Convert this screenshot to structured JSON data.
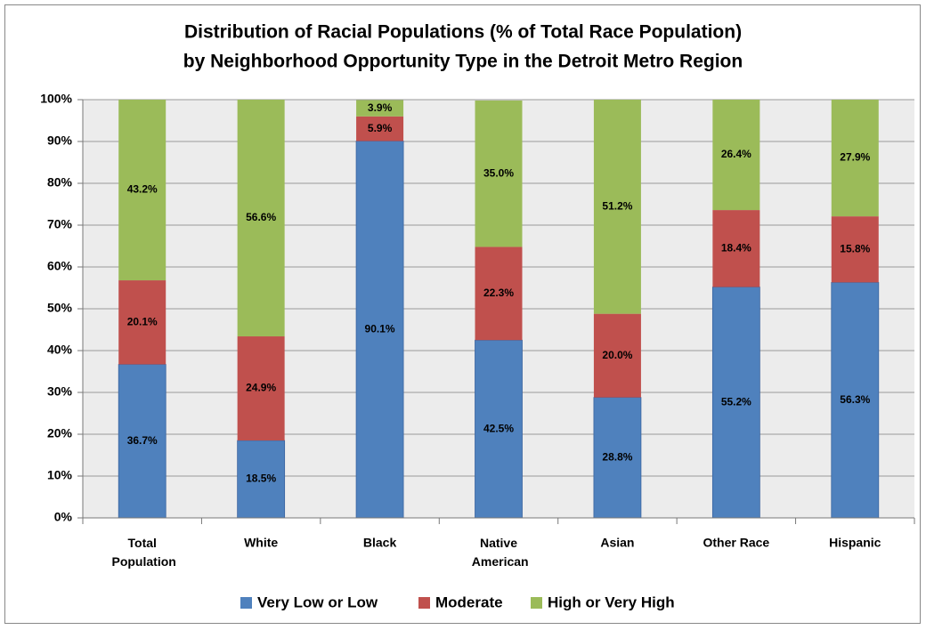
{
  "chart_data": {
    "type": "stacked_bar",
    "title": [
      "Distribution of Racial Populations (% of Total Race Population)",
      "by Neighborhood Opportunity Type in the Detroit Metro Region"
    ],
    "categories": [
      "Total Population",
      "White",
      "Black",
      "Native American",
      "Asian",
      "Other Race",
      "Hispanic"
    ],
    "series": [
      {
        "name": "Very Low or Low",
        "color": "#4f81bd",
        "values": [
          36.7,
          18.5,
          90.1,
          42.5,
          28.8,
          55.2,
          56.3
        ],
        "value_labels": [
          "36.7%",
          "18.5%",
          "90.1%",
          "42.5%",
          "28.8%",
          "55.2%",
          "56.3%"
        ]
      },
      {
        "name": "Moderate",
        "color": "#c0504d",
        "values": [
          20.1,
          24.9,
          5.9,
          22.3,
          20.0,
          18.4,
          15.8
        ],
        "value_labels": [
          "20.1%",
          "24.9%",
          "5.9%",
          "22.3%",
          "20.0%",
          "18.4%",
          "15.8%"
        ]
      },
      {
        "name": "High or Very High",
        "color": "#9bbb59",
        "values": [
          43.2,
          56.6,
          3.9,
          35.0,
          51.2,
          26.4,
          27.9
        ],
        "value_labels": [
          "43.2%",
          "56.6%",
          "3.9%",
          "35.0%",
          "51.2%",
          "26.4%",
          "27.9%"
        ]
      }
    ],
    "ylim": [
      0,
      100
    ],
    "yticks": [
      {
        "value": 0,
        "label": "0%"
      },
      {
        "value": 10,
        "label": "10%"
      },
      {
        "value": 20,
        "label": "20%"
      },
      {
        "value": 30,
        "label": "30%"
      },
      {
        "value": 40,
        "label": "40%"
      },
      {
        "value": 50,
        "label": "50%"
      },
      {
        "value": 60,
        "label": "60%"
      },
      {
        "value": 70,
        "label": "70%"
      },
      {
        "value": 80,
        "label": "80%"
      },
      {
        "value": 90,
        "label": "90%"
      },
      {
        "value": 100,
        "label": "100%"
      }
    ],
    "grid": true,
    "legend": "bottom"
  }
}
